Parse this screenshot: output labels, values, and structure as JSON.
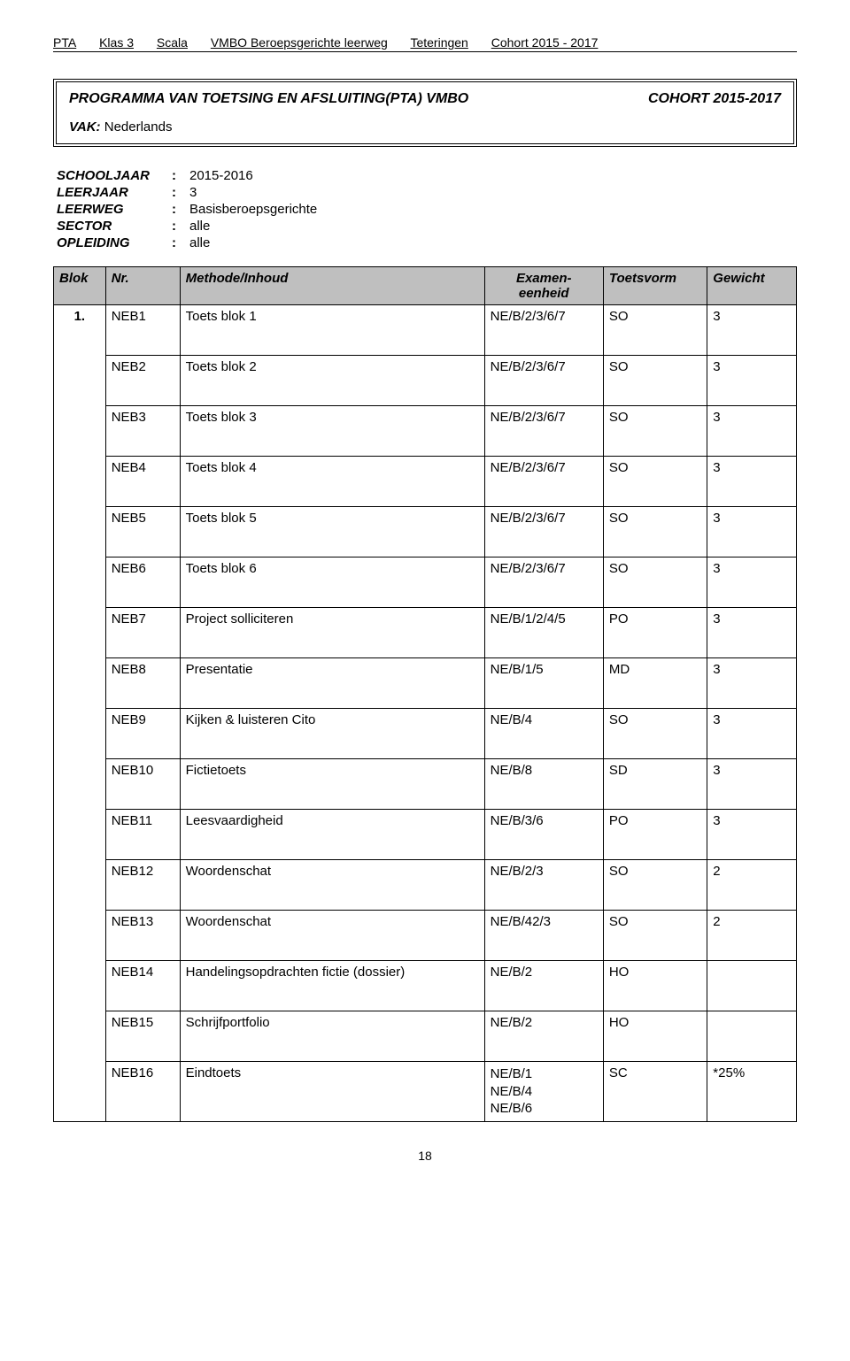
{
  "header": {
    "parts": [
      "PTA",
      "Klas 3",
      "Scala",
      "VMBO Beroepsgerichte leerweg",
      "Teteringen",
      "Cohort 2015 - 2017"
    ]
  },
  "title": {
    "left": "PROGRAMMA VAN TOETSING EN AFSLUITING(PTA)  VMBO",
    "right": "COHORT 2015-2017",
    "vak_label": "VAK:",
    "vak_value": "Nederlands"
  },
  "meta": [
    {
      "label": "SCHOOLJAAR",
      "value": "2015-2016"
    },
    {
      "label": "LEERJAAR",
      "value": "3"
    },
    {
      "label": "LEERWEG",
      "value": "Basisberoepsgerichte"
    },
    {
      "label": "SECTOR",
      "value": "alle"
    },
    {
      "label": "OPLEIDING",
      "value": "alle"
    }
  ],
  "columns": {
    "blok": "Blok",
    "nr": "Nr.",
    "inhoud": "Methode/Inhoud",
    "examen": "Examen-\neenheid",
    "toetsvorm": "Toetsvorm",
    "gewicht": "Gewicht"
  },
  "blok_number": "1.",
  "rows": [
    {
      "nr": "NEB1",
      "inhoud": "Toets blok 1",
      "examen": "NE/B/2/3/6/7",
      "tv": "SO",
      "gw": "3"
    },
    {
      "nr": "NEB2",
      "inhoud": "Toets blok 2",
      "examen": "NE/B/2/3/6/7",
      "tv": "SO",
      "gw": "3"
    },
    {
      "nr": "NEB3",
      "inhoud": "Toets blok 3",
      "examen": "NE/B/2/3/6/7",
      "tv": "SO",
      "gw": "3"
    },
    {
      "nr": "NEB4",
      "inhoud": "Toets blok 4",
      "examen": "NE/B/2/3/6/7",
      "tv": "SO",
      "gw": "3"
    },
    {
      "nr": "NEB5",
      "inhoud": "Toets blok 5",
      "examen": "NE/B/2/3/6/7",
      "tv": "SO",
      "gw": "3"
    },
    {
      "nr": "NEB6",
      "inhoud": "Toets blok 6",
      "examen": "NE/B/2/3/6/7",
      "tv": "SO",
      "gw": "3"
    },
    {
      "nr": "NEB7",
      "inhoud": "Project solliciteren",
      "examen": "NE/B/1/2/4/5",
      "tv": "PO",
      "gw": "3"
    },
    {
      "nr": "NEB8",
      "inhoud": "Presentatie",
      "examen": "NE/B/1/5",
      "tv": "MD",
      "gw": "3"
    },
    {
      "nr": "NEB9",
      "inhoud": "Kijken & luisteren Cito",
      "examen": "NE/B/4",
      "tv": "SO",
      "gw": "3"
    },
    {
      "nr": "NEB10",
      "inhoud": "Fictietoets",
      "examen": "NE/B/8",
      "tv": "SD",
      "gw": "3"
    },
    {
      "nr": "NEB11",
      "inhoud": "Leesvaardigheid",
      "examen": "NE/B/3/6",
      "tv": "PO",
      "gw": "3"
    },
    {
      "nr": "NEB12",
      "inhoud": "Woordenschat",
      "examen": "NE/B/2/3",
      "tv": "SO",
      "gw": "2"
    },
    {
      "nr": "NEB13",
      "inhoud": "Woordenschat",
      "examen": "NE/B/42/3",
      "tv": "SO",
      "gw": "2"
    },
    {
      "nr": "NEB14",
      "inhoud": "Handelingsopdrachten fictie (dossier)",
      "examen": "NE/B/2",
      "tv": "HO",
      "gw": ""
    },
    {
      "nr": "NEB15",
      "inhoud": "Schrijfportfolio",
      "examen": "NE/B/2",
      "tv": "HO",
      "gw": ""
    },
    {
      "nr": "NEB16",
      "inhoud": "Eindtoets",
      "examen": "NE/B/1\nNE/B/4\nNE/B/6",
      "tv": "SC",
      "gw": "*25%"
    }
  ],
  "page_number": "18"
}
